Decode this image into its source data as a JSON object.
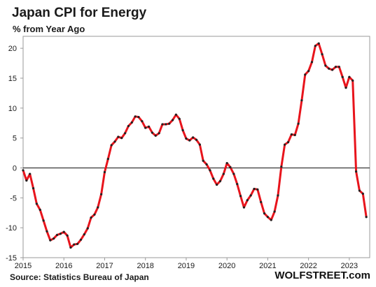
{
  "header": {
    "title": "Japan CPI for Energy",
    "subtitle": "% from Year Ago"
  },
  "footer": {
    "source": "Source: Statistics Bureau of Japan",
    "brand": "WOLFSTREET.com"
  },
  "chart_data": {
    "type": "line",
    "title": "Japan CPI for Energy",
    "subtitle": "% from Year Ago",
    "xlabel": "",
    "ylabel": "% from Year Ago",
    "ylim": [
      -15,
      22
    ],
    "yticks": [
      20,
      15,
      10,
      5,
      0,
      -5,
      -10,
      -15
    ],
    "xlim": [
      2015.0,
      2023.5
    ],
    "xticks": [
      "2015",
      "2016",
      "2017",
      "2018",
      "2019",
      "2020",
      "2021",
      "2022",
      "2023"
    ],
    "grid": false,
    "zero_line": true,
    "series": [
      {
        "color": "#e8141c",
        "marker_color": "#222222",
        "points": [
          [
            "2015-01",
            -0.4
          ],
          [
            "2015-02",
            -2.1
          ],
          [
            "2015-03",
            -1.0
          ],
          [
            "2015-04",
            -3.4
          ],
          [
            "2015-05",
            -6.0
          ],
          [
            "2015-06",
            -7.0
          ],
          [
            "2015-07",
            -8.8
          ],
          [
            "2015-08",
            -10.6
          ],
          [
            "2015-09",
            -12.1
          ],
          [
            "2015-10",
            -11.8
          ],
          [
            "2015-11",
            -11.2
          ],
          [
            "2015-12",
            -11.0
          ],
          [
            "2016-01",
            -10.7
          ],
          [
            "2016-02",
            -11.3
          ],
          [
            "2016-03",
            -13.3
          ],
          [
            "2016-04",
            -12.8
          ],
          [
            "2016-05",
            -12.7
          ],
          [
            "2016-06",
            -12.0
          ],
          [
            "2016-07",
            -11.1
          ],
          [
            "2016-08",
            -10.1
          ],
          [
            "2016-09",
            -8.3
          ],
          [
            "2016-10",
            -7.8
          ],
          [
            "2016-11",
            -6.6
          ],
          [
            "2016-12",
            -4.4
          ],
          [
            "2017-01",
            -0.7
          ],
          [
            "2017-02",
            1.5
          ],
          [
            "2017-03",
            3.8
          ],
          [
            "2017-04",
            4.4
          ],
          [
            "2017-05",
            5.2
          ],
          [
            "2017-06",
            5.0
          ],
          [
            "2017-07",
            5.8
          ],
          [
            "2017-08",
            7.0
          ],
          [
            "2017-09",
            7.6
          ],
          [
            "2017-10",
            8.6
          ],
          [
            "2017-11",
            8.5
          ],
          [
            "2017-12",
            7.8
          ],
          [
            "2018-01",
            6.7
          ],
          [
            "2018-02",
            6.9
          ],
          [
            "2018-03",
            5.9
          ],
          [
            "2018-04",
            5.4
          ],
          [
            "2018-05",
            5.8
          ],
          [
            "2018-06",
            7.3
          ],
          [
            "2018-07",
            7.3
          ],
          [
            "2018-08",
            7.4
          ],
          [
            "2018-09",
            8.0
          ],
          [
            "2018-10",
            8.9
          ],
          [
            "2018-11",
            8.2
          ],
          [
            "2018-12",
            6.3
          ],
          [
            "2019-01",
            4.9
          ],
          [
            "2019-02",
            4.6
          ],
          [
            "2019-03",
            5.1
          ],
          [
            "2019-04",
            4.7
          ],
          [
            "2019-05",
            3.9
          ],
          [
            "2019-06",
            1.2
          ],
          [
            "2019-07",
            0.6
          ],
          [
            "2019-08",
            -0.4
          ],
          [
            "2019-09",
            -1.8
          ],
          [
            "2019-10",
            -2.8
          ],
          [
            "2019-11",
            -2.2
          ],
          [
            "2019-12",
            -1.0
          ],
          [
            "2020-01",
            0.8
          ],
          [
            "2020-02",
            0.1
          ],
          [
            "2020-03",
            -1.0
          ],
          [
            "2020-04",
            -2.7
          ],
          [
            "2020-05",
            -4.7
          ],
          [
            "2020-06",
            -6.6
          ],
          [
            "2020-07",
            -5.4
          ],
          [
            "2020-08",
            -4.6
          ],
          [
            "2020-09",
            -3.5
          ],
          [
            "2020-10",
            -3.6
          ],
          [
            "2020-11",
            -5.7
          ],
          [
            "2020-12",
            -7.6
          ],
          [
            "2021-01",
            -8.2
          ],
          [
            "2021-02",
            -8.7
          ],
          [
            "2021-03",
            -7.3
          ],
          [
            "2021-04",
            -4.6
          ],
          [
            "2021-05",
            0.2
          ],
          [
            "2021-06",
            3.9
          ],
          [
            "2021-07",
            4.3
          ],
          [
            "2021-08",
            5.6
          ],
          [
            "2021-09",
            5.5
          ],
          [
            "2021-10",
            7.4
          ],
          [
            "2021-11",
            11.3
          ],
          [
            "2021-12",
            15.6
          ],
          [
            "2022-01",
            16.2
          ],
          [
            "2022-02",
            17.7
          ],
          [
            "2022-03",
            20.4
          ],
          [
            "2022-04",
            20.8
          ],
          [
            "2022-05",
            19.0
          ],
          [
            "2022-06",
            17.1
          ],
          [
            "2022-07",
            16.6
          ],
          [
            "2022-08",
            16.4
          ],
          [
            "2022-09",
            16.9
          ],
          [
            "2022-10",
            16.9
          ],
          [
            "2022-11",
            15.2
          ],
          [
            "2022-12",
            13.4
          ],
          [
            "2023-01",
            15.2
          ],
          [
            "2023-02",
            14.6
          ],
          [
            "2023-03",
            -0.6
          ],
          [
            "2023-04",
            -3.8
          ],
          [
            "2023-05",
            -4.3
          ],
          [
            "2023-06",
            -8.2
          ]
        ]
      }
    ]
  }
}
